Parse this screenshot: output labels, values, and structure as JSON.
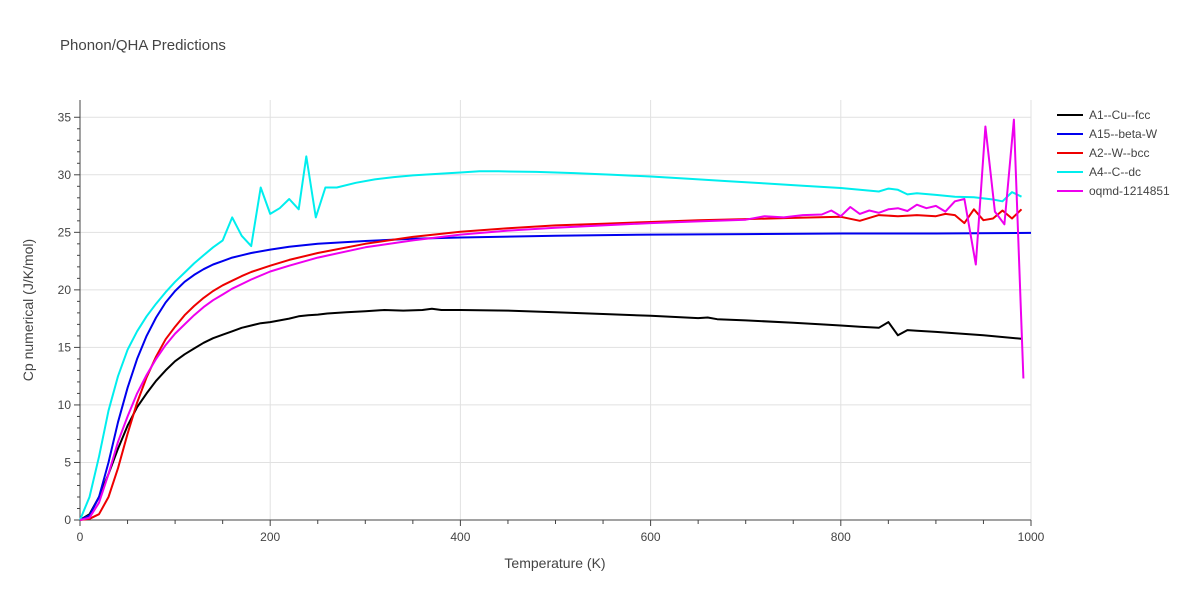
{
  "colors": {
    "grid": "#e1e1e1",
    "axis": "#444444",
    "text": "#444444",
    "background": "#ffffff"
  },
  "chart_data": {
    "type": "line",
    "title": "Phonon/QHA Predictions",
    "xlabel": "Temperature (K)",
    "ylabel": "Cp numerical (J/K/mol)",
    "xlim": [
      0,
      1000
    ],
    "ylim": [
      0,
      36.5
    ],
    "xticks": [
      0,
      200,
      400,
      600,
      800,
      1000
    ],
    "yticks": [
      0,
      5,
      10,
      15,
      20,
      25,
      30,
      35
    ],
    "grid": true,
    "legend_position": "right",
    "series": [
      {
        "name": "A1--Cu--fcc",
        "color": "#000000",
        "points": [
          [
            0,
            0
          ],
          [
            10,
            0.5
          ],
          [
            20,
            2
          ],
          [
            30,
            4
          ],
          [
            40,
            6.2
          ],
          [
            50,
            8.2
          ],
          [
            60,
            9.8
          ],
          [
            70,
            11
          ],
          [
            80,
            12.1
          ],
          [
            90,
            13
          ],
          [
            100,
            13.8
          ],
          [
            110,
            14.4
          ],
          [
            120,
            14.9
          ],
          [
            130,
            15.4
          ],
          [
            140,
            15.8
          ],
          [
            150,
            16.1
          ],
          [
            160,
            16.4
          ],
          [
            170,
            16.7
          ],
          [
            180,
            16.9
          ],
          [
            190,
            17.1
          ],
          [
            200,
            17.2
          ],
          [
            210,
            17.35
          ],
          [
            220,
            17.5
          ],
          [
            230,
            17.7
          ],
          [
            240,
            17.8
          ],
          [
            250,
            17.85
          ],
          [
            260,
            17.95
          ],
          [
            280,
            18.05
          ],
          [
            300,
            18.15
          ],
          [
            320,
            18.25
          ],
          [
            340,
            18.2
          ],
          [
            360,
            18.25
          ],
          [
            370,
            18.35
          ],
          [
            380,
            18.25
          ],
          [
            400,
            18.25
          ],
          [
            450,
            18.2
          ],
          [
            500,
            18.05
          ],
          [
            550,
            17.9
          ],
          [
            600,
            17.75
          ],
          [
            650,
            17.55
          ],
          [
            660,
            17.6
          ],
          [
            670,
            17.45
          ],
          [
            700,
            17.35
          ],
          [
            750,
            17.15
          ],
          [
            780,
            17
          ],
          [
            800,
            16.9
          ],
          [
            820,
            16.8
          ],
          [
            840,
            16.7
          ],
          [
            850,
            17.2
          ],
          [
            860,
            16.05
          ],
          [
            870,
            16.5
          ],
          [
            880,
            16.45
          ],
          [
            900,
            16.35
          ],
          [
            950,
            16.05
          ],
          [
            990,
            15.75
          ]
        ]
      },
      {
        "name": "A15--beta-W",
        "color": "#0000ee",
        "points": [
          [
            0,
            0
          ],
          [
            10,
            0.4
          ],
          [
            20,
            2
          ],
          [
            30,
            5
          ],
          [
            40,
            8.5
          ],
          [
            50,
            11.5
          ],
          [
            60,
            14
          ],
          [
            70,
            16
          ],
          [
            80,
            17.6
          ],
          [
            90,
            18.9
          ],
          [
            100,
            19.9
          ],
          [
            110,
            20.7
          ],
          [
            120,
            21.3
          ],
          [
            130,
            21.8
          ],
          [
            140,
            22.2
          ],
          [
            150,
            22.5
          ],
          [
            160,
            22.8
          ],
          [
            170,
            23
          ],
          [
            180,
            23.2
          ],
          [
            200,
            23.5
          ],
          [
            220,
            23.75
          ],
          [
            250,
            24
          ],
          [
            300,
            24.25
          ],
          [
            350,
            24.45
          ],
          [
            400,
            24.55
          ],
          [
            500,
            24.7
          ],
          [
            600,
            24.8
          ],
          [
            700,
            24.85
          ],
          [
            800,
            24.9
          ],
          [
            900,
            24.9
          ],
          [
            1000,
            24.95
          ]
        ]
      },
      {
        "name": "A2--W--bcc",
        "color": "#ee0000",
        "points": [
          [
            0,
            0
          ],
          [
            10,
            0.1
          ],
          [
            20,
            0.5
          ],
          [
            30,
            2
          ],
          [
            40,
            4.5
          ],
          [
            50,
            7.5
          ],
          [
            60,
            10.2
          ],
          [
            70,
            12.4
          ],
          [
            80,
            14.2
          ],
          [
            90,
            15.7
          ],
          [
            100,
            16.8
          ],
          [
            110,
            17.8
          ],
          [
            120,
            18.6
          ],
          [
            130,
            19.3
          ],
          [
            140,
            19.9
          ],
          [
            150,
            20.4
          ],
          [
            160,
            20.8
          ],
          [
            170,
            21.2
          ],
          [
            180,
            21.55
          ],
          [
            200,
            22.1
          ],
          [
            220,
            22.6
          ],
          [
            250,
            23.2
          ],
          [
            300,
            24
          ],
          [
            350,
            24.6
          ],
          [
            400,
            25.05
          ],
          [
            450,
            25.35
          ],
          [
            500,
            25.6
          ],
          [
            550,
            25.75
          ],
          [
            600,
            25.9
          ],
          [
            650,
            26.05
          ],
          [
            700,
            26.15
          ],
          [
            750,
            26.25
          ],
          [
            800,
            26.35
          ],
          [
            820,
            26
          ],
          [
            840,
            26.5
          ],
          [
            860,
            26.4
          ],
          [
            880,
            26.5
          ],
          [
            900,
            26.4
          ],
          [
            910,
            26.6
          ],
          [
            920,
            26.5
          ],
          [
            930,
            25.8
          ],
          [
            940,
            27
          ],
          [
            950,
            26.05
          ],
          [
            960,
            26.2
          ],
          [
            970,
            26.9
          ],
          [
            980,
            26.2
          ],
          [
            990,
            27
          ]
        ]
      },
      {
        "name": "A4--C--dc",
        "color": "#00eeee",
        "points": [
          [
            0,
            0
          ],
          [
            10,
            2
          ],
          [
            20,
            5.5
          ],
          [
            30,
            9.5
          ],
          [
            40,
            12.5
          ],
          [
            50,
            14.8
          ],
          [
            60,
            16.4
          ],
          [
            70,
            17.7
          ],
          [
            80,
            18.8
          ],
          [
            90,
            19.8
          ],
          [
            100,
            20.7
          ],
          [
            110,
            21.5
          ],
          [
            120,
            22.3
          ],
          [
            130,
            23
          ],
          [
            140,
            23.7
          ],
          [
            150,
            24.3
          ],
          [
            160,
            26.3
          ],
          [
            170,
            24.7
          ],
          [
            180,
            23.8
          ],
          [
            190,
            28.9
          ],
          [
            200,
            26.6
          ],
          [
            210,
            27.1
          ],
          [
            220,
            27.9
          ],
          [
            230,
            27
          ],
          [
            238,
            31.6
          ],
          [
            248,
            26.3
          ],
          [
            258,
            28.9
          ],
          [
            270,
            28.9
          ],
          [
            290,
            29.3
          ],
          [
            310,
            29.6
          ],
          [
            330,
            29.8
          ],
          [
            350,
            29.95
          ],
          [
            380,
            30.1
          ],
          [
            400,
            30.2
          ],
          [
            420,
            30.3
          ],
          [
            440,
            30.3
          ],
          [
            480,
            30.25
          ],
          [
            520,
            30.15
          ],
          [
            560,
            30
          ],
          [
            600,
            29.85
          ],
          [
            640,
            29.65
          ],
          [
            680,
            29.45
          ],
          [
            720,
            29.25
          ],
          [
            760,
            29.05
          ],
          [
            800,
            28.85
          ],
          [
            820,
            28.7
          ],
          [
            840,
            28.55
          ],
          [
            850,
            28.8
          ],
          [
            860,
            28.7
          ],
          [
            870,
            28.3
          ],
          [
            880,
            28.4
          ],
          [
            900,
            28.25
          ],
          [
            920,
            28.1
          ],
          [
            940,
            28.05
          ],
          [
            960,
            27.85
          ],
          [
            970,
            27.7
          ],
          [
            980,
            28.5
          ],
          [
            990,
            28.1
          ]
        ]
      },
      {
        "name": "oqmd-1214851",
        "color": "#ee00ee",
        "points": [
          [
            0,
            0
          ],
          [
            10,
            0.2
          ],
          [
            20,
            1.5
          ],
          [
            30,
            4
          ],
          [
            40,
            6.8
          ],
          [
            50,
            9
          ],
          [
            60,
            11
          ],
          [
            70,
            12.6
          ],
          [
            80,
            14
          ],
          [
            90,
            15.2
          ],
          [
            100,
            16.2
          ],
          [
            110,
            17
          ],
          [
            120,
            17.8
          ],
          [
            130,
            18.5
          ],
          [
            140,
            19.1
          ],
          [
            150,
            19.6
          ],
          [
            160,
            20.1
          ],
          [
            170,
            20.5
          ],
          [
            180,
            20.9
          ],
          [
            200,
            21.6
          ],
          [
            220,
            22.1
          ],
          [
            250,
            22.8
          ],
          [
            300,
            23.7
          ],
          [
            350,
            24.3
          ],
          [
            400,
            24.8
          ],
          [
            450,
            25.15
          ],
          [
            500,
            25.4
          ],
          [
            550,
            25.6
          ],
          [
            600,
            25.8
          ],
          [
            650,
            25.95
          ],
          [
            700,
            26.1
          ],
          [
            720,
            26.4
          ],
          [
            740,
            26.3
          ],
          [
            760,
            26.5
          ],
          [
            780,
            26.55
          ],
          [
            790,
            26.9
          ],
          [
            800,
            26.4
          ],
          [
            810,
            27.2
          ],
          [
            820,
            26.6
          ],
          [
            830,
            26.9
          ],
          [
            840,
            26.7
          ],
          [
            850,
            27
          ],
          [
            860,
            27.1
          ],
          [
            870,
            26.85
          ],
          [
            880,
            27.4
          ],
          [
            890,
            27.1
          ],
          [
            900,
            27.3
          ],
          [
            910,
            26.8
          ],
          [
            920,
            27.7
          ],
          [
            930,
            27.9
          ],
          [
            942,
            22.2
          ],
          [
            952,
            34.2
          ],
          [
            962,
            26.8
          ],
          [
            972,
            25.7
          ],
          [
            982,
            34.8
          ],
          [
            992,
            12.3
          ]
        ]
      }
    ]
  }
}
